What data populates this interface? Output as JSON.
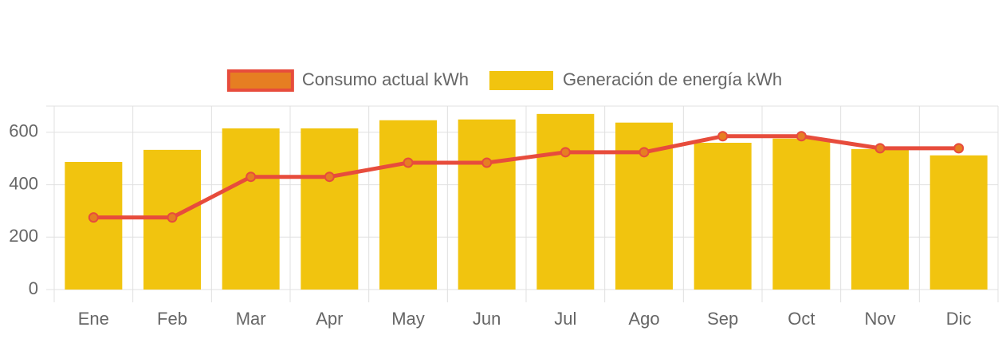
{
  "chart_data": {
    "type": "bar",
    "categories": [
      "Ene",
      "Feb",
      "Mar",
      "Apr",
      "May",
      "Jun",
      "Jul",
      "Ago",
      "Sep",
      "Oct",
      "Nov",
      "Dic"
    ],
    "series": [
      {
        "name": "Consumo actual kWh",
        "type": "line",
        "color": "#e74c3c",
        "point_color": "#e67e22",
        "values": [
          275,
          275,
          430,
          430,
          484,
          484,
          524,
          524,
          585,
          585,
          539,
          539
        ]
      },
      {
        "name": "Generación de energía kWh",
        "type": "bar",
        "color": "#f1c40f",
        "values": [
          487,
          533,
          615,
          615,
          646,
          649,
          670,
          637,
          560,
          576,
          536,
          512
        ]
      }
    ],
    "ylim": [
      0,
      700
    ],
    "yticks": [
      0,
      200,
      400,
      600
    ],
    "grid": true,
    "legend": "top"
  }
}
